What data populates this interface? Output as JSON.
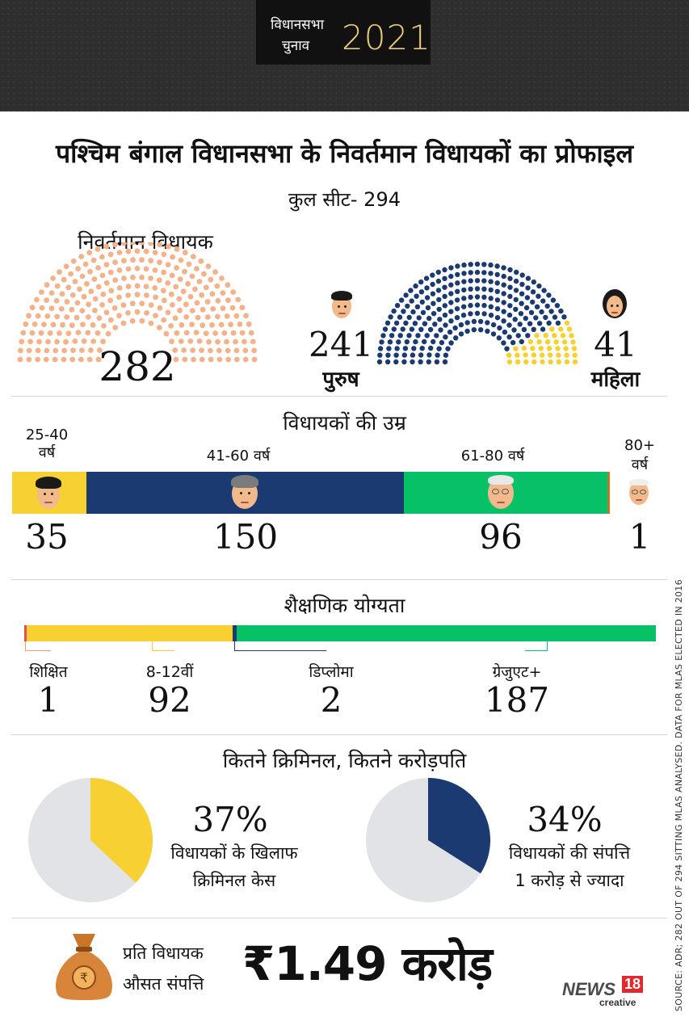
{
  "header": {
    "badge_line1": "विधानसभा",
    "badge_line2": "चुनाव",
    "badge_year": "2021"
  },
  "title": "पश्चिम बंगाल विधानसभा के निवर्तमान विधायकों का प्रोफाइल",
  "subtitle": "कुल सीट- 294",
  "sitting": {
    "label": "निवर्तमान विधायक",
    "count": "282",
    "male_count": "241",
    "male_label": "पुरुष",
    "female_count": "41",
    "female_label": "महिला",
    "colors": {
      "all": "#f4b28a",
      "male": "#1b3a72",
      "female": "#f7d031"
    }
  },
  "age": {
    "heading": "विधायकों की उम्र",
    "groups": [
      {
        "label_line1": "25-40",
        "label_line2": "वर्ष",
        "count": "35",
        "value": 35,
        "color": "#f7d031"
      },
      {
        "label_line1": "41-60",
        "label_line2": "वर्ष",
        "count": "150",
        "value": 150,
        "color": "#1b3a72"
      },
      {
        "label_line1": "61-80",
        "label_line2": "वर्ष",
        "count": "96",
        "value": 96,
        "color": "#07c167"
      },
      {
        "label_line1": "80+",
        "label_line2": "वर्ष",
        "count": "1",
        "value": 1,
        "color": "#c0782a"
      }
    ]
  },
  "education": {
    "heading": "शैक्षणिक योग्यता",
    "groups": [
      {
        "label": "शिक्षित",
        "count": "1",
        "value": 1,
        "color": "#e0504a"
      },
      {
        "label": "8-12वीं",
        "count": "92",
        "value": 92,
        "color": "#f7d031"
      },
      {
        "label": "डिप्लोमा",
        "count": "2",
        "value": 2,
        "color": "#1b3a72"
      },
      {
        "label": "ग्रेजुएट+",
        "count": "187",
        "value": 187,
        "color": "#07c167"
      }
    ]
  },
  "crime": {
    "heading": "कितने क्रिमिनल, कितने करोड़पति",
    "criminal": {
      "percent_text": "37%",
      "fraction": 0.37,
      "line1": "विधायकों के खिलाफ",
      "line2": "क्रिमिनल केस",
      "color": "#f7d031"
    },
    "crorepati": {
      "percent_text": "34%",
      "fraction": 0.34,
      "line1": "विधायकों की संपत्ति",
      "line2": "1 करोड़ से ज्यादा",
      "color": "#1b3a72"
    },
    "pie_bg": "#e2e3e6"
  },
  "assets": {
    "line1": "प्रति विधायक",
    "line2": "औसत संपत्ति",
    "value": "₹1.49 करोड़",
    "bag_symbol": "₹"
  },
  "source": "SOURCE: ADR; 282 OUT OF 294 SITTING MLAS ANALYSED. DATA FOR MLAS ELECTED IN 2016",
  "logo": {
    "name": "NEWS",
    "number": "18",
    "sub": "creative"
  }
}
